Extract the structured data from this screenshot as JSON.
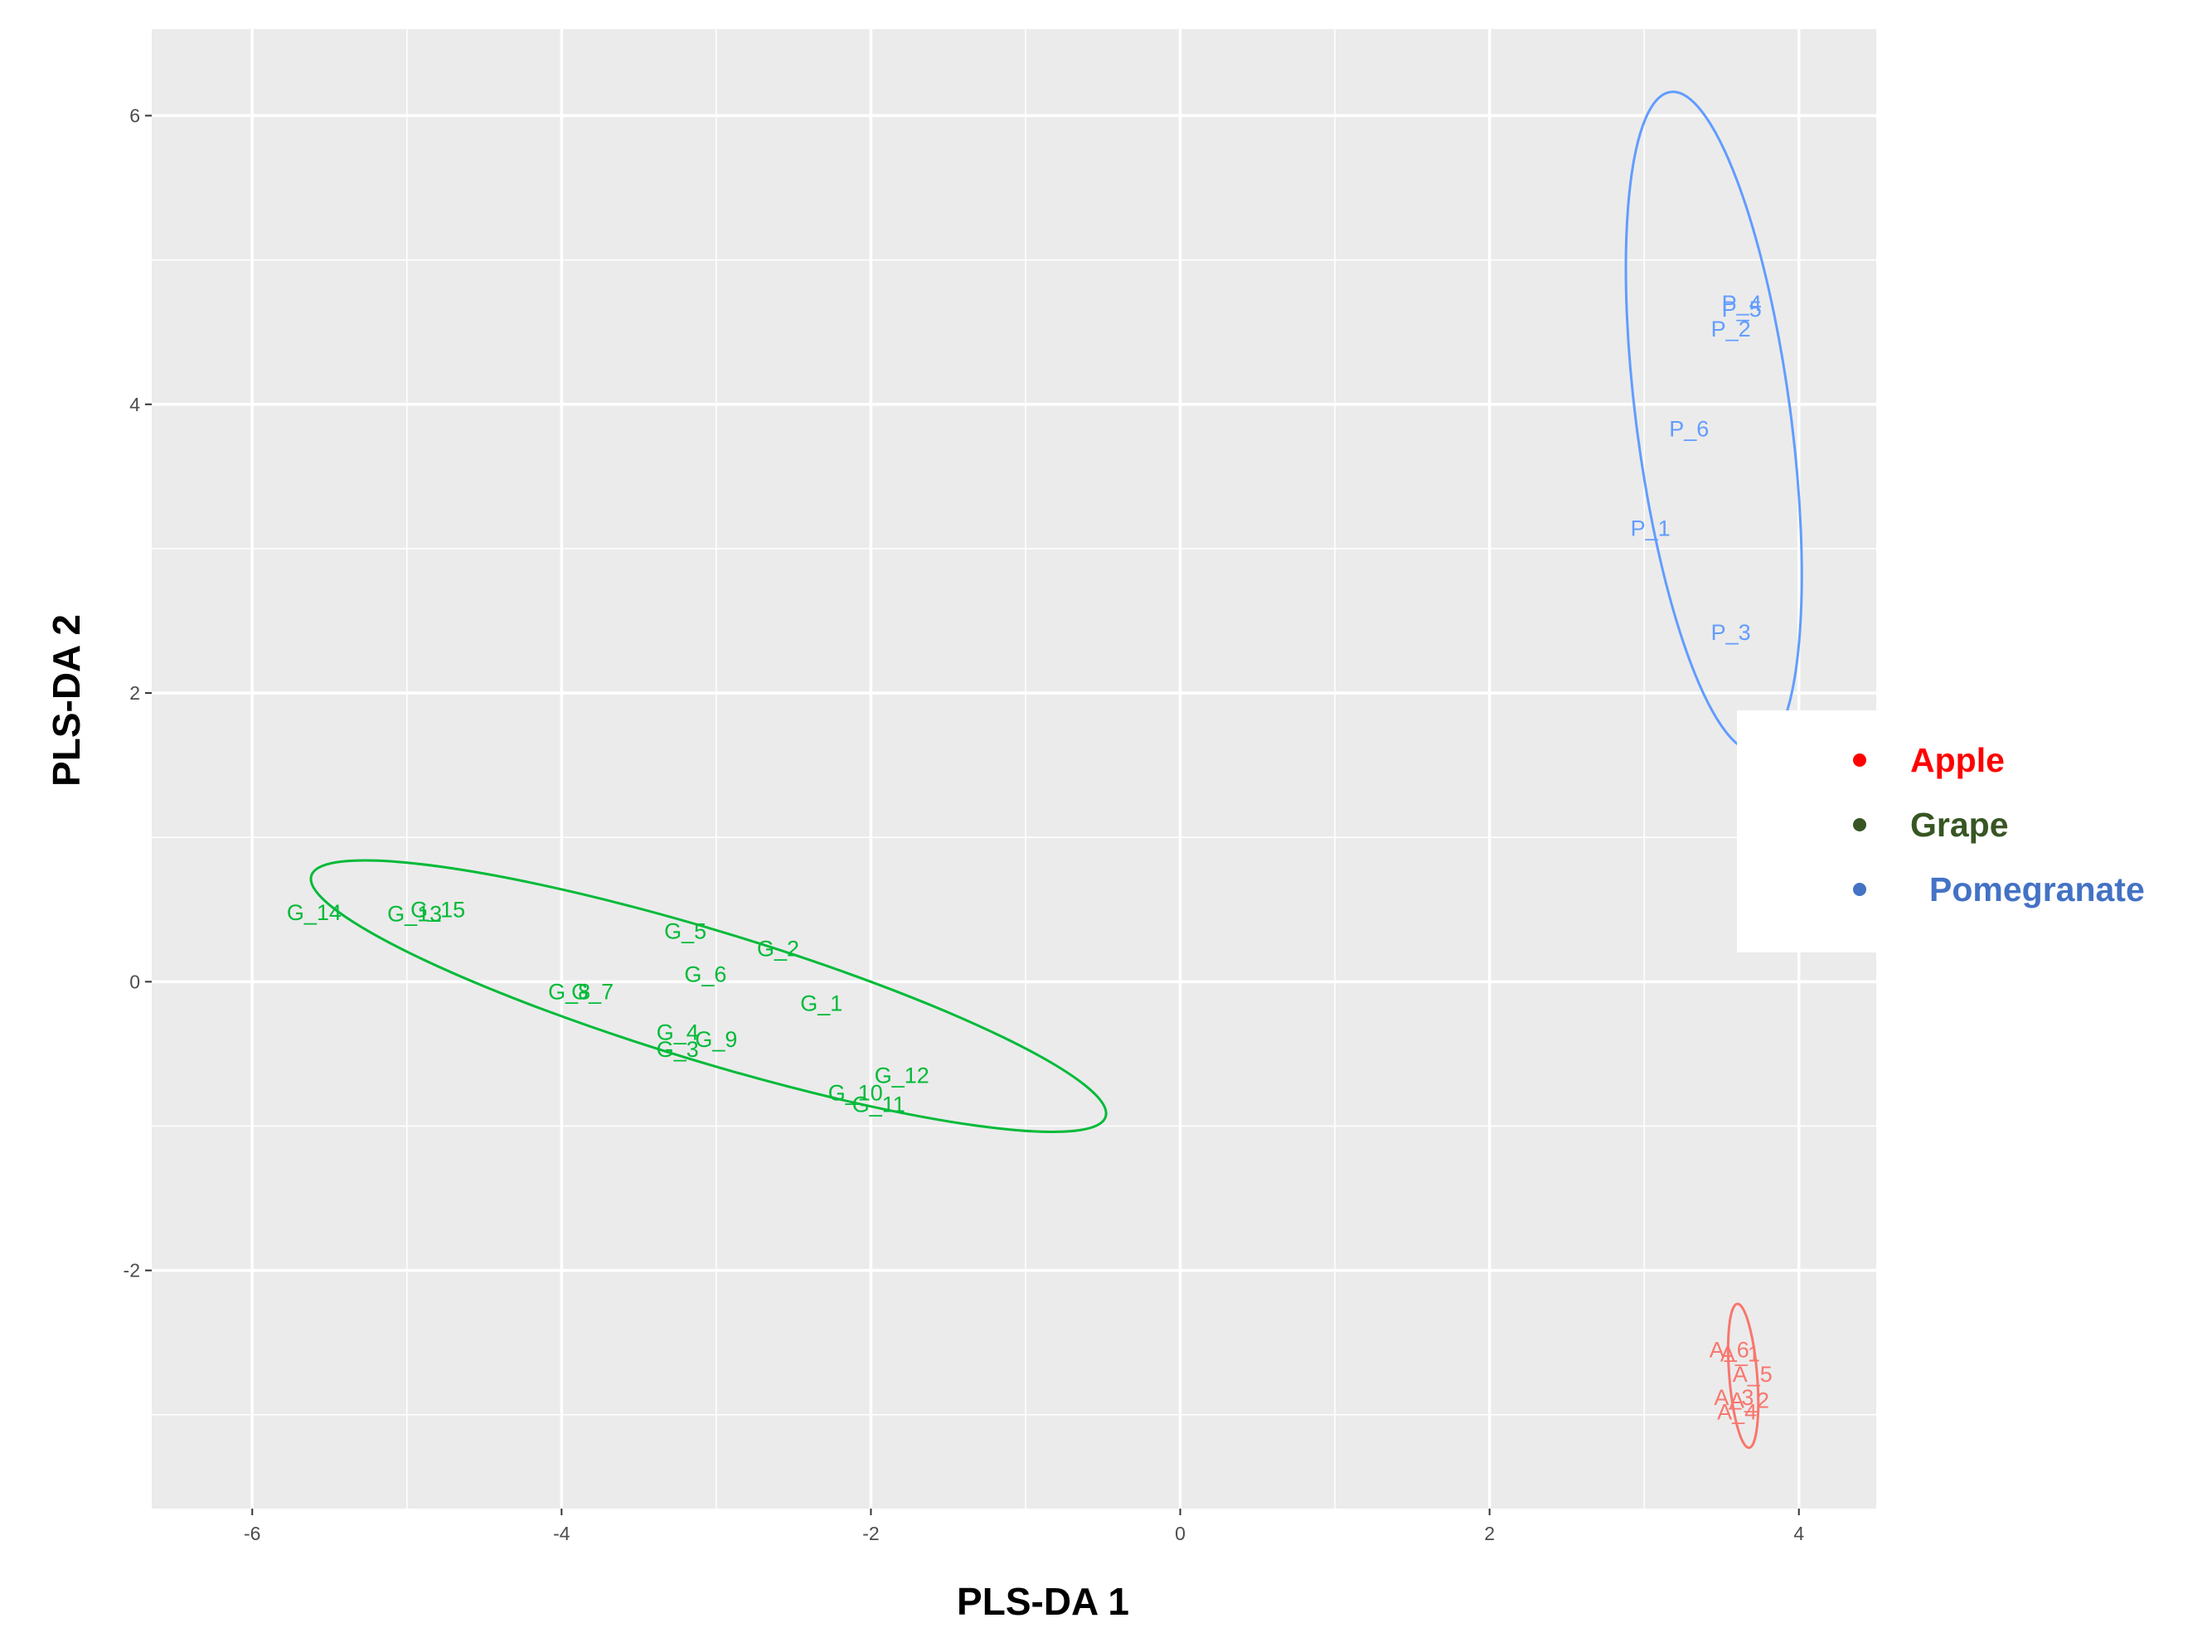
{
  "chart_data": {
    "type": "scatter",
    "xlabel": "PLS-DA 1",
    "ylabel": "PLS-DA 2",
    "xlim": [
      -6.65,
      4.5
    ],
    "ylim": [
      -3.65,
      6.6
    ],
    "x_ticks": [
      -6,
      -4,
      -2,
      0,
      2,
      4
    ],
    "y_ticks": [
      -2,
      0,
      2,
      4,
      6
    ],
    "x_tick_labels": [
      "-6",
      "-4",
      "-2",
      "0",
      "2",
      "4"
    ],
    "y_tick_labels": [
      "-2",
      "0",
      "2",
      "4",
      "6"
    ],
    "grid": true,
    "legend_position": "right",
    "series": [
      {
        "name": "Apple",
        "legend_color": "#ff0000",
        "plot_color": "#f8766d",
        "points": [
          {
            "label": "A_6",
            "x": 3.55,
            "y": -2.55
          },
          {
            "label": "A_1",
            "x": 3.62,
            "y": -2.58
          },
          {
            "label": "A_5",
            "x": 3.7,
            "y": -2.72
          },
          {
            "label": "A_3",
            "x": 3.58,
            "y": -2.88
          },
          {
            "label": "A_2",
            "x": 3.68,
            "y": -2.9
          },
          {
            "label": "A_4",
            "x": 3.6,
            "y": -2.98
          }
        ],
        "ellipse": {
          "cx": 3.64,
          "cy": -2.73,
          "rx": 0.09,
          "ry": 0.5,
          "angle_deg": 5
        }
      },
      {
        "name": "Grape",
        "legend_color": "#375623",
        "plot_color": "#00ba38",
        "points": [
          {
            "label": "G_14",
            "x": -5.6,
            "y": 0.48
          },
          {
            "label": "G_13",
            "x": -4.95,
            "y": 0.47
          },
          {
            "label": "G_15",
            "x": -4.8,
            "y": 0.5
          },
          {
            "label": "G_5",
            "x": -3.2,
            "y": 0.35
          },
          {
            "label": "G_2",
            "x": -2.6,
            "y": 0.23
          },
          {
            "label": "G_6",
            "x": -3.07,
            "y": 0.05
          },
          {
            "label": "G_8",
            "x": -3.95,
            "y": -0.07
          },
          {
            "label": "G_7",
            "x": -3.8,
            "y": -0.07
          },
          {
            "label": "G_1",
            "x": -2.32,
            "y": -0.15
          },
          {
            "label": "G_4",
            "x": -3.25,
            "y": -0.35
          },
          {
            "label": "G_9",
            "x": -3.0,
            "y": -0.4
          },
          {
            "label": "G_3",
            "x": -3.25,
            "y": -0.47
          },
          {
            "label": "G_12",
            "x": -1.8,
            "y": -0.65
          },
          {
            "label": "G_10",
            "x": -2.1,
            "y": -0.77
          },
          {
            "label": "G_11",
            "x": -1.95,
            "y": -0.85
          }
        ],
        "ellipse": {
          "cx": -3.05,
          "cy": -0.1,
          "rx": 2.7,
          "ry": 0.45,
          "angle_deg": -18
        }
      },
      {
        "name": "Pomegranate",
        "legend_color": "#4472c4",
        "plot_color": "#619cff",
        "points": [
          {
            "label": "P_4",
            "x": 3.63,
            "y": 4.7
          },
          {
            "label": "P_5",
            "x": 3.63,
            "y": 4.66
          },
          {
            "label": "P_2",
            "x": 3.56,
            "y": 4.52
          },
          {
            "label": "P_6",
            "x": 3.29,
            "y": 3.83
          },
          {
            "label": "P_1",
            "x": 3.04,
            "y": 3.14
          },
          {
            "label": "P_3",
            "x": 3.56,
            "y": 2.42
          }
        ],
        "ellipse": {
          "cx": 3.45,
          "cy": 3.88,
          "rx": 0.5,
          "ry": 2.3,
          "angle_deg": 8
        }
      }
    ]
  }
}
